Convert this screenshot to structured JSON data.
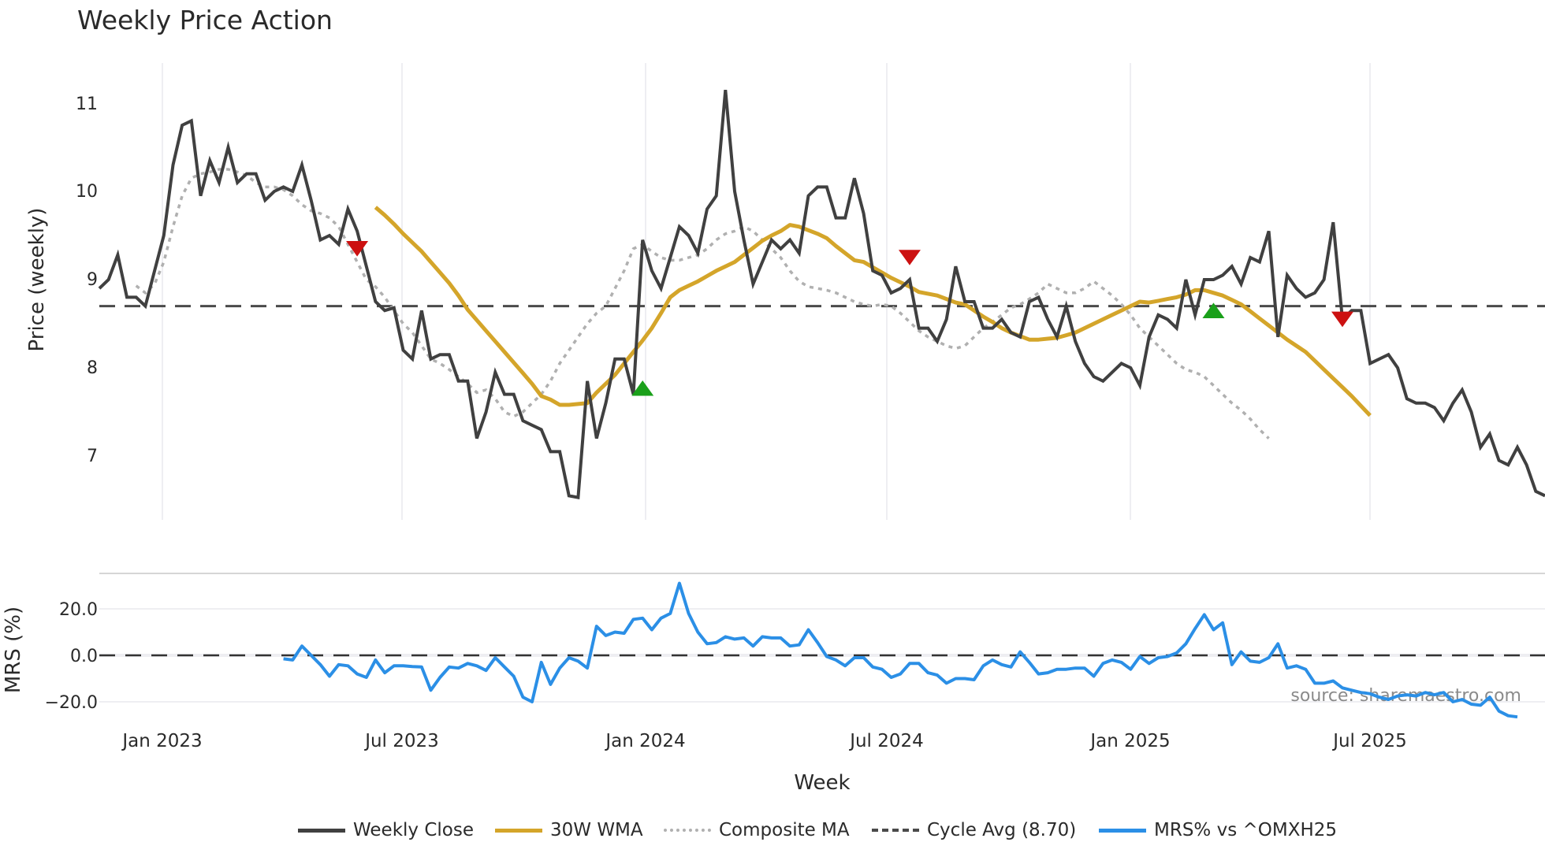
{
  "title": "Weekly Price Action",
  "colors": {
    "weekly_close": "#404040",
    "wma30": "#d4a52a",
    "composite_ma": "#b0b0b0",
    "cycle_avg": "#4a4a4a",
    "mrs": "#2b8fe6",
    "buy_marker": "#1aa01a",
    "sell_marker": "#cc1111",
    "grid": "#eeeef2"
  },
  "legend": [
    {
      "label": "Weekly Close",
      "style": "solid",
      "color": "#404040"
    },
    {
      "label": "30W WMA",
      "style": "solid",
      "color": "#d4a52a"
    },
    {
      "label": "Composite MA",
      "style": "dotted",
      "color": "#b0b0b0"
    },
    {
      "label": "Cycle Avg (8.70)",
      "style": "dashed",
      "color": "#4a4a4a"
    },
    {
      "label": "MRS% vs ^OMXH25",
      "style": "solid",
      "color": "#2b8fe6"
    }
  ],
  "source_text": "source: sharemaestro.com",
  "chart_data": [
    {
      "type": "line",
      "title": "Weekly Price Action",
      "xlabel": "Week",
      "ylabel": "Price (weekly)",
      "ylim": [
        6.3,
        11.6
      ],
      "yticks": [
        7,
        8,
        9,
        10,
        11
      ],
      "x_tick_labels": [
        "Jan 2023",
        "Jul 2023",
        "Jan 2024",
        "Jul 2024",
        "Jan 2025",
        "Jul 2025"
      ],
      "grid": "vertical",
      "x_start": "2022-11-13",
      "x_interval": "weekly",
      "series": [
        {
          "name": "Weekly Close",
          "values": [
            8.9,
            9.0,
            9.28,
            8.8,
            8.8,
            8.7,
            9.1,
            9.5,
            10.3,
            10.75,
            10.8,
            9.95,
            10.35,
            10.1,
            10.5,
            10.1,
            10.2,
            10.2,
            9.9,
            10.0,
            10.05,
            10.0,
            10.3,
            9.9,
            9.45,
            9.5,
            9.4,
            9.8,
            9.55,
            9.15,
            8.75,
            8.65,
            8.68,
            8.2,
            8.1,
            8.65,
            8.1,
            8.15,
            8.15,
            7.85,
            7.85,
            7.2,
            7.5,
            7.95,
            7.7,
            7.7,
            7.4,
            7.35,
            7.3,
            7.05,
            7.05,
            6.55,
            6.53,
            7.85,
            7.2,
            7.6,
            8.1,
            8.1,
            7.7,
            9.45,
            9.1,
            8.9,
            9.25,
            9.6,
            9.5,
            9.3,
            9.8,
            9.95,
            11.15,
            10.0,
            9.45,
            8.95,
            9.2,
            9.45,
            9.35,
            9.45,
            9.3,
            9.95,
            10.05,
            10.05,
            9.7,
            9.7,
            10.15,
            9.75,
            9.1,
            9.05,
            8.85,
            8.9,
            9.0,
            8.45,
            8.45,
            8.3,
            8.55,
            9.15,
            8.75,
            8.75,
            8.45,
            8.45,
            8.55,
            8.4,
            8.35,
            8.75,
            8.8,
            8.55,
            8.35,
            8.7,
            8.3,
            8.05,
            7.9,
            7.85,
            7.95,
            8.05,
            8.0,
            7.8,
            8.35,
            8.6,
            8.55,
            8.45,
            9.0,
            8.6,
            9.0,
            9.0,
            9.05,
            9.15,
            8.95,
            9.25,
            9.2,
            9.55,
            8.35,
            9.05,
            8.9,
            8.8,
            8.85,
            9.0,
            9.65,
            8.55,
            8.65,
            8.65,
            8.05,
            8.1,
            8.15,
            8.0,
            7.65,
            7.6,
            7.6,
            7.55,
            7.4,
            7.6,
            7.75,
            7.5,
            7.1,
            7.25,
            6.95,
            6.9,
            7.1,
            6.9,
            6.6,
            6.55
          ]
        },
        {
          "name": "30W WMA",
          "start_index": 30,
          "values": [
            9.82,
            9.73,
            9.63,
            9.52,
            9.42,
            9.32,
            9.2,
            9.08,
            8.96,
            8.82,
            8.66,
            8.54,
            8.42,
            8.3,
            8.18,
            8.06,
            7.94,
            7.82,
            7.68,
            7.64,
            7.58,
            7.58,
            7.59,
            7.6,
            7.72,
            7.82,
            7.92,
            8.05,
            8.18,
            8.31,
            8.45,
            8.62,
            8.8,
            8.88,
            8.93,
            8.98,
            9.04,
            9.1,
            9.15,
            9.2,
            9.28,
            9.36,
            9.44,
            9.5,
            9.55,
            9.62,
            9.6,
            9.56,
            9.52,
            9.47,
            9.38,
            9.3,
            9.22,
            9.2,
            9.14,
            9.08,
            9.02,
            8.97,
            8.92,
            8.86,
            8.84,
            8.82,
            8.78,
            8.74,
            8.72,
            8.65,
            8.58,
            8.52,
            8.45,
            8.4,
            8.36,
            8.32,
            8.32,
            8.33,
            8.34,
            8.37,
            8.4,
            8.45,
            8.5,
            8.55,
            8.6,
            8.65,
            8.7,
            8.75,
            8.74,
            8.76,
            8.78,
            8.8,
            8.83,
            8.88,
            8.88,
            8.85,
            8.82,
            8.77,
            8.72,
            8.64,
            8.56,
            8.48,
            8.4,
            8.32,
            8.25,
            8.18,
            8.08,
            7.98,
            7.88,
            7.78,
            7.68,
            7.57,
            7.46
          ]
        },
        {
          "name": "Composite MA",
          "start_index": 4,
          "values": [
            8.93,
            8.85,
            8.95,
            9.2,
            9.6,
            9.95,
            10.15,
            10.2,
            10.22,
            10.25,
            10.25,
            10.22,
            10.18,
            10.1,
            10.05,
            10.05,
            10.02,
            9.95,
            9.85,
            9.78,
            9.75,
            9.7,
            9.6,
            9.4,
            9.2,
            9.0,
            8.92,
            8.8,
            8.65,
            8.5,
            8.4,
            8.25,
            8.1,
            8.05,
            7.98,
            7.9,
            7.82,
            7.72,
            7.75,
            7.65,
            7.5,
            7.45,
            7.5,
            7.6,
            7.7,
            7.85,
            8.05,
            8.2,
            8.35,
            8.5,
            8.62,
            8.7,
            8.9,
            9.1,
            9.35,
            9.4,
            9.32,
            9.25,
            9.22,
            9.22,
            9.25,
            9.28,
            9.35,
            9.45,
            9.52,
            9.55,
            9.6,
            9.55,
            9.45,
            9.35,
            9.25,
            9.1,
            8.98,
            8.92,
            8.9,
            8.88,
            8.85,
            8.8,
            8.75,
            8.72,
            8.7,
            8.72,
            8.7,
            8.62,
            8.52,
            8.42,
            8.35,
            8.3,
            8.25,
            8.22,
            8.25,
            8.35,
            8.45,
            8.52,
            8.6,
            8.68,
            8.72,
            8.78,
            8.85,
            8.95,
            8.9,
            8.85,
            8.85,
            8.9,
            8.98,
            8.9,
            8.82,
            8.72,
            8.6,
            8.45,
            8.35,
            8.25,
            8.15,
            8.05,
            7.98,
            7.95,
            7.9,
            7.8,
            7.7,
            7.6,
            7.52,
            7.42,
            7.3,
            7.2
          ]
        },
        {
          "name": "Cycle Avg (8.70)",
          "constant": 8.7
        }
      ],
      "markers": [
        {
          "type": "sell",
          "shape": "triangle-down",
          "week_index": 28,
          "y": 9.35
        },
        {
          "type": "buy",
          "shape": "triangle-up",
          "week_index": 59,
          "y": 7.77
        },
        {
          "type": "sell",
          "shape": "triangle-down",
          "week_index": 88,
          "y": 9.25
        },
        {
          "type": "buy",
          "shape": "triangle-up",
          "week_index": 121,
          "y": 8.65
        },
        {
          "type": "sell",
          "shape": "triangle-down",
          "week_index": 135,
          "y": 8.55
        }
      ]
    },
    {
      "type": "line",
      "ylabel": "MRS (%)",
      "ylim": [
        -30,
        35
      ],
      "yticks": [
        -20.0,
        0.0,
        20.0
      ],
      "ytick_labels": [
        "−20.0",
        "0.0",
        "20.0"
      ],
      "reference_line": 0.0,
      "series": [
        {
          "name": "MRS% vs ^OMXH25",
          "start_index": 20,
          "values": [
            -1.5,
            -2,
            4,
            0,
            -4,
            -9,
            -4,
            -4.5,
            -8,
            -9.5,
            -2,
            -7.5,
            -4.5,
            -4.5,
            -4.8,
            -5,
            -15,
            -9.5,
            -5,
            -5.5,
            -3.5,
            -4.5,
            -6.5,
            -1,
            -5,
            -9,
            -18,
            -20,
            -3,
            -12.5,
            -5.5,
            -1,
            -2.5,
            -5.5,
            12.5,
            8.5,
            10,
            9.5,
            15.5,
            16,
            11,
            16,
            18,
            31,
            18,
            10,
            5,
            5.5,
            8,
            7,
            7.5,
            4,
            8,
            7.5,
            7.5,
            4,
            4.5,
            11,
            5.5,
            -0.5,
            -2,
            -4.5,
            -1,
            -1,
            -5,
            -6,
            -9.5,
            -8,
            -3.5,
            -3.5,
            -7.5,
            -8.5,
            -12,
            -10,
            -10,
            -10.5,
            -4.5,
            -2,
            -4,
            -5,
            1.5,
            -3,
            -8,
            -7.5,
            -6,
            -6,
            -5.5,
            -5.5,
            -9,
            -3.5,
            -2,
            -3,
            -6,
            -0.5,
            -3.5,
            -1,
            -0.5,
            1,
            5,
            11.5,
            17.5,
            11,
            14,
            -4,
            1.5,
            -2.5,
            -3,
            -1,
            5,
            -5.5,
            -4.5,
            -6,
            -12,
            -12,
            -11,
            -14,
            -15,
            -16,
            -16.5,
            -18,
            -19,
            -17.5,
            -17,
            -17.5,
            -16,
            -17,
            -16,
            -20,
            -19,
            -21,
            -21.5,
            -18,
            -24,
            -26,
            -26.5
          ]
        }
      ]
    }
  ],
  "axes": {
    "price_ylabel": "Price (weekly)",
    "mrs_ylabel": "MRS (%)",
    "xlabel": "Week",
    "price_yticks": [
      "11",
      "10",
      "9",
      "8",
      "7"
    ],
    "mrs_yticks": [
      "20.0",
      "0.0",
      "−20.0"
    ],
    "xticks": [
      "Jan 2023",
      "Jul 2023",
      "Jan 2024",
      "Jul 2024",
      "Jan 2025",
      "Jul 2025"
    ]
  }
}
